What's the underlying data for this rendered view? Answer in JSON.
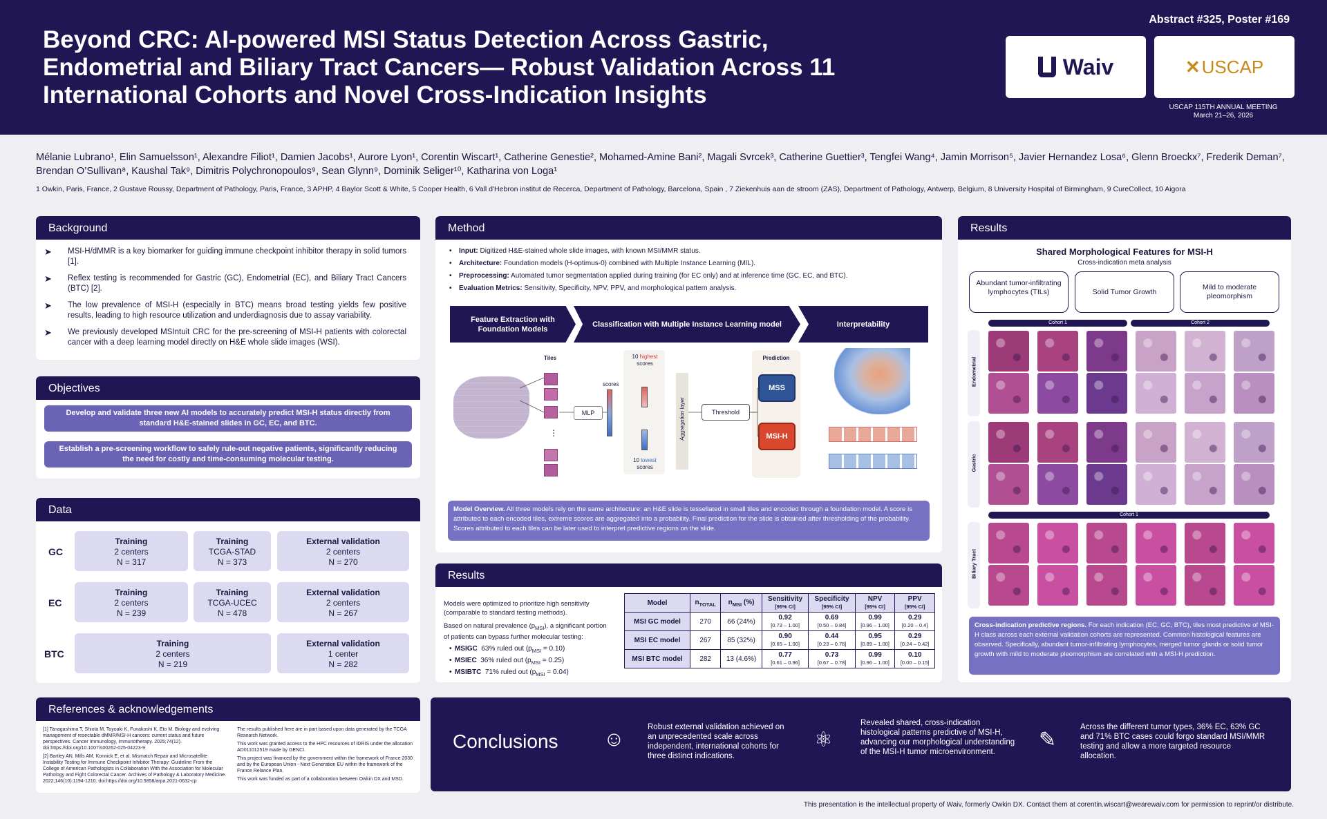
{
  "header": {
    "title": "Beyond CRC: AI-powered MSI Status Detection Across Gastric, Endometrial and Biliary Tract Cancers— Robust Validation Across 11 International Cohorts and Novel Cross-Indication Insights",
    "abstract": "Abstract #325, Poster #169",
    "logo_waiv": "Waiv",
    "logo_uscap": "USCAP",
    "meeting_line1": "USCAP 115TH ANNUAL MEETING",
    "meeting_line2": "March 21–26, 2026"
  },
  "authors": "Mélanie Lubrano¹, Elin Samuelsson¹, Alexandre Filiot¹, Damien Jacobs¹, Aurore Lyon¹, Corentin Wiscart¹, Catherine Genestie², Mohamed-Amine Bani², Magali Svrcek³, Catherine Guettier³, Tengfei Wang⁴, Jamin Morrison⁵, Javier Hernandez Losa⁶, Glenn Broeckx⁷, Frederik Deman⁷, Brendan O’Sullivan⁸, Kaushal Tak⁹, Dimitris Polychronopoulos⁹, Sean Glynn⁹, Dominik Seliger¹⁰, Katharina von Loga¹",
  "affiliations": "1 Owkin, Paris, France, 2 Gustave Roussy, Department of Pathology, Paris, France, 3 APHP, 4 Baylor Scott & White, 5 Cooper Health, 6 Vall d'Hebron institut de Recerca, Department of Pathology, Barcelona, Spain , 7 Ziekenhuis aan de stroom (ZAS), Department of Pathology, Antwerp, Belgium, 8 University Hospital of Birmingham, 9 CureCollect, 10 Aigora",
  "background": {
    "heading": "Background",
    "items": [
      "MSI-H/dMMR is a key biomarker for guiding immune checkpoint inhibitor therapy in solid tumors [1].",
      "Reflex testing is recommended for Gastric (GC), Endometrial (EC), and Biliary Tract Cancers (BTC) [2].",
      "The low prevalence of MSI-H (especially in BTC) means broad testing yields few positive results, leading to high resource utilization and underdiagnosis due to assay variability.",
      "We previously developed MSIntuit CRC for the pre-screening of MSI-H patients with colorectal cancer with a deep learning model directly on H&E whole slide images (WSI)."
    ]
  },
  "objectives": {
    "heading": "Objectives",
    "items": [
      "Develop and validate three new AI models to accurately predict MSI-H status directly from standard H&E-stained slides in GC, EC, and BTC.",
      "Establish a pre-screening workflow to safely rule-out negative patients, significantly reducing the need for costly and time-consuming molecular testing."
    ]
  },
  "data": {
    "heading": "Data",
    "gc": {
      "label": "GC",
      "b1": [
        "Training",
        "2 centers",
        "N = 317"
      ],
      "b2": [
        "Training",
        "TCGA-STAD",
        "N = 373"
      ],
      "b3": [
        "External validation",
        "2 centers",
        "N = 270"
      ]
    },
    "ec": {
      "label": "EC",
      "b1": [
        "Training",
        "2 centers",
        "N = 239"
      ],
      "b2": [
        "Training",
        "TCGA-UCEC",
        "N = 478"
      ],
      "b3": [
        "External validation",
        "2 centers",
        "N = 267"
      ]
    },
    "btc": {
      "label": "BTC",
      "b1": [
        "Training",
        "2 centers",
        "N = 219"
      ],
      "b3": [
        "External validation",
        "1 center",
        "N = 282"
      ]
    }
  },
  "references": {
    "heading": "References & acknowledgements",
    "left": [
      "[1] Tanagashima T, Shiota M, Toyoaki K, Funakoshi K, Eto M. Biology and evolving management of resectable dMMR/MSI-H cancers: current status and future perspectives. Cancer Immunology, Immunotherapy. 2025;74(12). doi:https://doi.org/10.1007/s00262-025-04223-9",
      "[2] Bartley AN, Mills AM, Konnick E, et al. Mismatch Repair and Microsatellite Instability Testing for Immune Checkpoint Inhibitor Therapy: Guideline From the College of American Pathologists in Collaboration With the Association for Molecular Pathology and Fight Colorectal Cancer. Archives of Pathology & Laboratory Medicine. 2022;146(10):1194-1210. doi:https://doi.org/10.5858/arpa.2021-0632-cp"
    ],
    "right": [
      "The results published here are in part based upon data generated by the TCGA Research Network.",
      "This work was granted access to the HPC resources of IDRIS under the allocation AD011012519 made by GENCI.",
      "This project was financed by the government within the framework of France 2030 and by the European Union - Next Generation EU within the framework of the France Relance Plan.",
      "This work was funded as part of a collaboration between Owkin DX and MSD."
    ]
  },
  "method": {
    "heading": "Method",
    "bullets": [
      {
        "k": "Input:",
        "v": " Digitized H&E-stained whole slide images, with known MSI/MMR status."
      },
      {
        "k": "Architecture:",
        "v": " Foundation models (H-optimus-0) combined with Multiple Instance Learning (MIL)."
      },
      {
        "k": "Preprocessing:",
        "v": " Automated tumor segmentation applied during training (for EC only) and at inference time (GC, EC, and BTC)."
      },
      {
        "k": "Evaluation Metrics:",
        "v": " Sensitivity, Specificity, NPV, PPV, and morphological pattern analysis."
      }
    ],
    "steps": [
      "Feature Extraction with Foundation Models",
      "Classification with Multiple Instance Learning model",
      "Interpretability"
    ],
    "diagram": {
      "tiles": "Tiles",
      "scores": "scores",
      "mlp": "MLP",
      "highest_a": "10",
      "highest_b": "highest",
      "highest_c": "scores",
      "lowest_a": "10",
      "lowest_b": "lowest",
      "lowest_c": "scores",
      "aggregation": "Aggregation layer",
      "threshold": "Threshold",
      "prediction": "Prediction",
      "mss": "MSS",
      "msih": "MSI-H",
      "dots": "⋮"
    },
    "note_bold": "Model Overview.",
    "note": " All three models rely on the same architecture: an H&E slide is tessellated in small tiles and encoded through a foundation model. A score is attributed to each encoded tiles, extreme scores are aggregated into a probability. Final prediction for the slide is obtained after thresholding of the probability. Scores attributed to each tiles can be later used to interpret predictive regions on the slide."
  },
  "results_mid": {
    "heading": "Results",
    "p1": "Models were optimized to prioritize high sensitivity (comparable to standard testing methods).",
    "p2a": "Based on natural prevalence (p",
    "p2sub": "MSI",
    "p2b": "), a significant portion of patients can bypass further molecular testing:",
    "rules": [
      {
        "name": "MSIGC",
        "txt": "63% ruled out (p",
        "sub": "MSI",
        "end": " = 0.10)"
      },
      {
        "name": "MSIEC",
        "txt": "36% ruled out (p",
        "sub": "MSI",
        "end": " = 0.25)"
      },
      {
        "name": "MSIBTC",
        "txt": "71% ruled out (p",
        "sub": "MSI",
        "end": " = 0.04)"
      }
    ],
    "table": {
      "h_model": "Model",
      "h_ntotal": "n",
      "h_ntotal_sub": "TOTAL",
      "h_nmsi": "n",
      "h_nmsi_sub": "MSI",
      "h_nmsi_end": " (%)",
      "h_sens": "Sensitivity",
      "h_spec": "Specificity",
      "h_npv": "NPV",
      "h_ppv": "PPV",
      "ci": "[95% CI]",
      "rows": [
        {
          "model": "MSI GC model",
          "n": "270",
          "msi": "66 (24%)",
          "sens": "0.92",
          "sens_ci": "[0.73 – 1.00]",
          "spec": "0.69",
          "spec_ci": "[0.50 – 0.84]",
          "npv": "0.99",
          "npv_ci": "[0.96 – 1.00]",
          "ppv": "0.29",
          "ppv_ci": "[0.20 – 0.4]"
        },
        {
          "model": "MSI EC model",
          "n": "267",
          "msi": "85 (32%)",
          "sens": "0.90",
          "sens_ci": "[0.65 – 1.00]",
          "spec": "0.44",
          "spec_ci": "[0.23 – 0.76]",
          "npv": "0.95",
          "npv_ci": "[0.89 – 1.00]",
          "ppv": "0.29",
          "ppv_ci": "[0.24 – 0.42]"
        },
        {
          "model": "MSI BTC model",
          "n": "282",
          "msi": "13 (4.6%)",
          "sens": "0.77",
          "sens_ci": "[0.61 – 0.96]",
          "spec": "0.73",
          "spec_ci": "[0.67 – 0.78]",
          "npv": "0.99",
          "npv_ci": "[0.96 – 1.00]",
          "ppv": "0.10",
          "ppv_ci": "[0.00 – 0.15]"
        }
      ]
    }
  },
  "results_right": {
    "heading": "Results",
    "title": "Shared Morphological Features for MSI-H",
    "subtitle": "Cross-indication meta analysis",
    "features": [
      "Abundant tumor-infiltrating lymphocytes (TILs)",
      "Solid Tumor Growth",
      "Mild to moderate pleomorphism"
    ],
    "cohort1": "Cohort 1",
    "cohort2": "Cohort 2",
    "cohort1b": "Cohort 1",
    "rows": [
      "Endometrial",
      "Gastric",
      "Biliary Tract"
    ],
    "note_bold": "Cross-indication predictive regions.",
    "note": " For each indication (EC, GC, BTC), tiles most predictive of MSI-H class across each external validation cohorts are represented. Common histological features are observed. Specifically, abundant tumor-infiltrating lymphocytes, merged tumor glands or solid tumor growth with mild to moderate pleomorphism are correlated with a MSI-H prediction."
  },
  "conclusions": {
    "title": "Conclusions",
    "items": [
      "Robust external validation achieved on an unprecedented scale across independent, international cohorts for three distinct indications.",
      "Revealed shared, cross-indication histological patterns predictive of MSI-H, advancing our morphological understanding of the MSI-H tumor microenvironment.",
      "Across the different tumor types, 36% EC, 63% GC and 71% BTC cases could forgo standard MSI/MMR testing and allow a more targeted resource allocation."
    ]
  },
  "footer": "This presentation is the intellectual property of Waiv, formerly Owkin DX. Contact them at corentin.wiscart@wearewaiv.com for permission to reprint/or distribute."
}
